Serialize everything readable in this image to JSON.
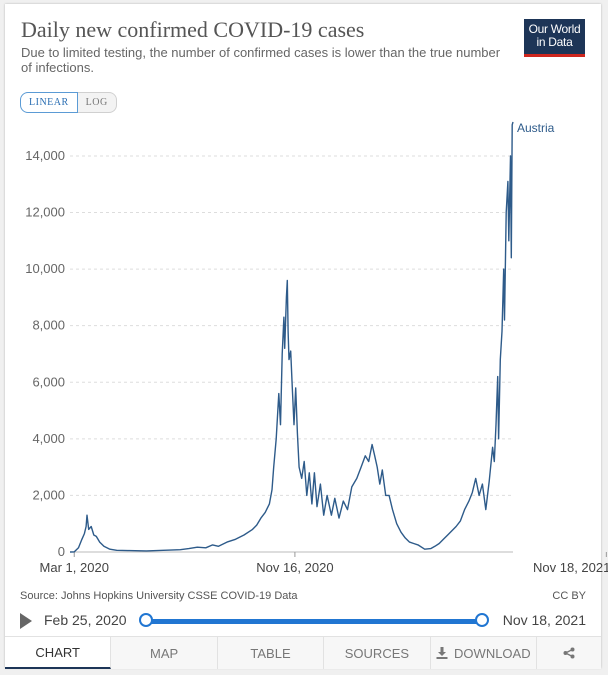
{
  "header": {
    "title": "Daily new confirmed COVID-19 cases",
    "subtitle": "Due to limited testing, the number of confirmed cases is lower than the true number of infections.",
    "logo_line1": "Our World",
    "logo_line2": "in Data"
  },
  "scale": {
    "linear_label": "LINEAR",
    "log_label": "LOG",
    "selected": "linear"
  },
  "chart_data": {
    "type": "line",
    "title": "Daily new confirmed COVID-19 cases",
    "x_tick_labels": [
      "Mar 1, 2020",
      "Nov 16, 2020",
      "Nov 18, 2021"
    ],
    "x_ticks_day_index": [
      5,
      265,
      632
    ],
    "ylim": [
      0,
      15200
    ],
    "y_ticks": [
      0,
      2000,
      4000,
      6000,
      8000,
      10000,
      12000,
      14000
    ],
    "y_tick_labels": [
      "0",
      "2,000",
      "4,000",
      "6,000",
      "8,000",
      "10,000",
      "12,000",
      "14,000"
    ],
    "grid": "horizontal dashed",
    "series": [
      {
        "name": "Austria",
        "color": "#2e5b8a",
        "points": [
          [
            0,
            0
          ],
          [
            5,
            5
          ],
          [
            10,
            150
          ],
          [
            14,
            450
          ],
          [
            17,
            650
          ],
          [
            19,
            900
          ],
          [
            20,
            1300
          ],
          [
            22,
            800
          ],
          [
            25,
            900
          ],
          [
            28,
            600
          ],
          [
            31,
            550
          ],
          [
            35,
            350
          ],
          [
            40,
            200
          ],
          [
            47,
            100
          ],
          [
            55,
            60
          ],
          [
            70,
            50
          ],
          [
            90,
            40
          ],
          [
            110,
            60
          ],
          [
            130,
            80
          ],
          [
            140,
            120
          ],
          [
            150,
            170
          ],
          [
            160,
            150
          ],
          [
            168,
            250
          ],
          [
            175,
            200
          ],
          [
            185,
            350
          ],
          [
            195,
            450
          ],
          [
            205,
            600
          ],
          [
            215,
            800
          ],
          [
            220,
            950
          ],
          [
            225,
            1200
          ],
          [
            230,
            1400
          ],
          [
            235,
            1700
          ],
          [
            238,
            2200
          ],
          [
            240,
            3000
          ],
          [
            243,
            4000
          ],
          [
            246,
            5600
          ],
          [
            248,
            4500
          ],
          [
            250,
            7000
          ],
          [
            252,
            8300
          ],
          [
            253,
            7200
          ],
          [
            255,
            9000
          ],
          [
            256,
            9600
          ],
          [
            257,
            7800
          ],
          [
            258,
            6800
          ],
          [
            260,
            7100
          ],
          [
            262,
            5800
          ],
          [
            264,
            4500
          ],
          [
            266,
            5800
          ],
          [
            268,
            4200
          ],
          [
            270,
            3000
          ],
          [
            273,
            2600
          ],
          [
            276,
            3200
          ],
          [
            279,
            2000
          ],
          [
            282,
            2800
          ],
          [
            285,
            1700
          ],
          [
            288,
            2800
          ],
          [
            291,
            1600
          ],
          [
            295,
            2400
          ],
          [
            299,
            1300
          ],
          [
            303,
            2000
          ],
          [
            308,
            1300
          ],
          [
            312,
            1900
          ],
          [
            317,
            1200
          ],
          [
            322,
            1800
          ],
          [
            327,
            1500
          ],
          [
            332,
            2300
          ],
          [
            338,
            2600
          ],
          [
            343,
            3000
          ],
          [
            348,
            3400
          ],
          [
            352,
            3200
          ],
          [
            356,
            3800
          ],
          [
            359,
            3400
          ],
          [
            362,
            3000
          ],
          [
            365,
            2400
          ],
          [
            368,
            2900
          ],
          [
            372,
            2000
          ],
          [
            376,
            2000
          ],
          [
            380,
            1500
          ],
          [
            385,
            1000
          ],
          [
            390,
            700
          ],
          [
            395,
            500
          ],
          [
            400,
            350
          ],
          [
            405,
            300
          ],
          [
            410,
            250
          ],
          [
            418,
            100
          ],
          [
            425,
            120
          ],
          [
            430,
            200
          ],
          [
            435,
            300
          ],
          [
            440,
            450
          ],
          [
            445,
            600
          ],
          [
            450,
            750
          ],
          [
            455,
            900
          ],
          [
            460,
            1100
          ],
          [
            465,
            1500
          ],
          [
            470,
            1800
          ],
          [
            474,
            2100
          ],
          [
            478,
            2600
          ],
          [
            482,
            2000
          ],
          [
            486,
            2400
          ],
          [
            490,
            1500
          ],
          [
            494,
            2500
          ],
          [
            498,
            3700
          ],
          [
            500,
            3200
          ],
          [
            502,
            4500
          ],
          [
            504,
            6200
          ],
          [
            505,
            4000
          ],
          [
            507,
            6800
          ],
          [
            509,
            7800
          ],
          [
            511,
            10000
          ],
          [
            512,
            8200
          ],
          [
            514,
            12000
          ],
          [
            516,
            13100
          ],
          [
            517,
            11000
          ],
          [
            519,
            14000
          ],
          [
            520,
            10400
          ],
          [
            521,
            15100
          ],
          [
            522,
            15200
          ]
        ]
      }
    ]
  },
  "footer": {
    "source": "Source: Johns Hopkins University CSSE COVID-19 Data",
    "license": "CC BY"
  },
  "timeline": {
    "start_label": "Feb 25, 2020",
    "end_label": "Nov 18, 2021"
  },
  "tabs": {
    "chart": "CHART",
    "map": "MAP",
    "table": "TABLE",
    "sources": "SOURCES",
    "download": "DOWNLOAD",
    "active": "chart"
  },
  "icons": {
    "play": "play-icon",
    "download": "download-icon",
    "share": "share-icon"
  }
}
